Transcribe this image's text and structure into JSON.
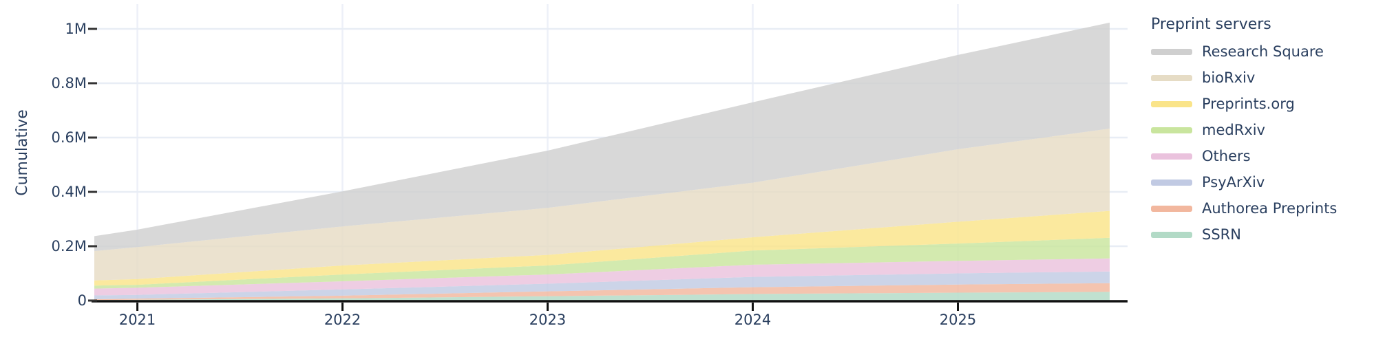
{
  "y_axis": {
    "title": "Cumulative",
    "tick_labels": [
      "0",
      "0.2M",
      "0.4M",
      "0.6M",
      "0.8M",
      "1M"
    ],
    "tick_values": [
      0,
      200000,
      400000,
      600000,
      800000,
      1000000
    ]
  },
  "x_axis": {
    "tick_labels": [
      "2021",
      "2022",
      "2023",
      "2024",
      "2025"
    ],
    "tick_years": [
      2021,
      2022,
      2023,
      2024,
      2025
    ]
  },
  "legend": {
    "title": "Preprint servers",
    "items": [
      {
        "label": "Research Square",
        "color": "#cfcfcf"
      },
      {
        "label": "bioRxiv",
        "color": "#e6dcc5"
      },
      {
        "label": "Preprints.org",
        "color": "#fae489"
      },
      {
        "label": "medRxiv",
        "color": "#c9e59e"
      },
      {
        "label": "Others",
        "color": "#eac2dd"
      },
      {
        "label": "PsyArXiv",
        "color": "#c1cae3"
      },
      {
        "label": "Authorea Preprints",
        "color": "#f2b79e"
      },
      {
        "label": "SSRN",
        "color": "#b2dac6"
      }
    ]
  },
  "chart_data": {
    "type": "area",
    "stacked": true,
    "title": "",
    "xlabel": "",
    "ylabel": "Cumulative",
    "legend_title": "Preprint servers",
    "legend_position": "right",
    "grid": true,
    "x_range": [
      2020.79,
      2025.74
    ],
    "ylim": [
      0,
      1050000
    ],
    "x": [
      2020.79,
      2021,
      2022,
      2023,
      2024,
      2025,
      2025.74
    ],
    "stack_order": "bottom_to_top",
    "series": [
      {
        "name": "SSRN",
        "color": "#b2dac6",
        "values": [
          2000,
          3000,
          8000,
          16000,
          24000,
          29000,
          32000
        ]
      },
      {
        "name": "Authorea Preprints",
        "color": "#f2b79e",
        "values": [
          3000,
          4000,
          10000,
          18000,
          25000,
          30000,
          32000
        ]
      },
      {
        "name": "PsyArXiv",
        "color": "#c1cae3",
        "values": [
          14000,
          14000,
          23000,
          28000,
          38000,
          41000,
          43000
        ]
      },
      {
        "name": "Others",
        "color": "#eac2dd",
        "values": [
          25000,
          26000,
          30000,
          34000,
          45000,
          46000,
          48000
        ]
      },
      {
        "name": "medRxiv",
        "color": "#c9e59e",
        "values": [
          11000,
          11000,
          25000,
          33000,
          52000,
          64000,
          76000
        ]
      },
      {
        "name": "Preprints.org",
        "color": "#fae489",
        "values": [
          19000,
          21000,
          33000,
          39000,
          49000,
          80000,
          99000
        ]
      },
      {
        "name": "bioRxiv",
        "color": "#e6dcc5",
        "values": [
          108000,
          118000,
          144000,
          173000,
          201000,
          267000,
          303000
        ]
      },
      {
        "name": "Research Square",
        "color": "#cfcfcf",
        "values": [
          55000,
          64000,
          129000,
          211000,
          296000,
          347000,
          390000
        ]
      }
    ],
    "cumulative_totals": [
      237000,
      261000,
      402000,
      552000,
      730000,
      904000,
      1023000
    ]
  }
}
